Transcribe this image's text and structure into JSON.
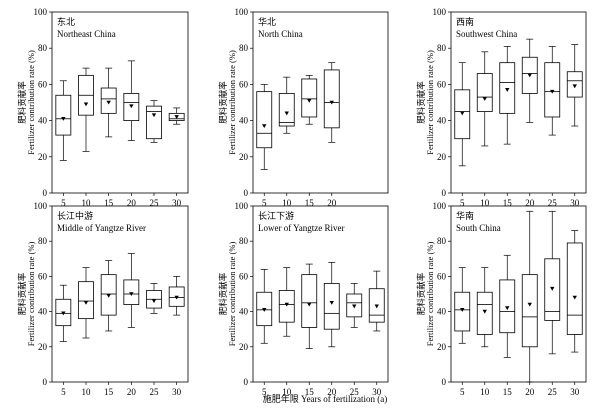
{
  "figure": {
    "xlabel": "施肥年限 Years of fertilization (a)",
    "ylabel_cn": "肥料贡献率",
    "ylabel_en": "Fertilizer contribution rate (%)",
    "yticks": [
      0,
      20,
      40,
      60,
      80,
      100
    ],
    "ylim": [
      0,
      100
    ]
  },
  "chart_data": [
    {
      "type": "box",
      "title_cn": "东北",
      "title_en": "Northeast China",
      "categories": [
        "5",
        "10",
        "15",
        "20",
        "25",
        "30"
      ],
      "boxes": [
        {
          "min": 18,
          "q1": 32,
          "median": 41,
          "q3": 54,
          "max": 62,
          "mean": 41
        },
        {
          "min": 23,
          "q1": 43,
          "median": 54,
          "q3": 65,
          "max": 69,
          "mean": 49
        },
        {
          "min": 31,
          "q1": 44,
          "median": 52,
          "q3": 58,
          "max": 69,
          "mean": 50
        },
        {
          "min": 29,
          "q1": 40,
          "median": 50,
          "q3": 55,
          "max": 73,
          "mean": 48
        },
        {
          "min": 28,
          "q1": 30,
          "median": 45,
          "q3": 48,
          "max": 51,
          "mean": 43
        },
        {
          "min": 38,
          "q1": 40,
          "median": 41,
          "q3": 44,
          "max": 47,
          "mean": 42
        }
      ]
    },
    {
      "type": "box",
      "title_cn": "华北",
      "title_en": "North China",
      "categories": [
        "5",
        "10",
        "15",
        "20"
      ],
      "boxes": [
        {
          "min": 13,
          "q1": 25,
          "median": 33,
          "q3": 56,
          "max": 60,
          "mean": 37
        },
        {
          "min": 33,
          "q1": 37,
          "median": 39,
          "q3": 55,
          "max": 64,
          "mean": 44
        },
        {
          "min": 38,
          "q1": 42,
          "median": 52,
          "q3": 63,
          "max": 65,
          "mean": 51
        },
        {
          "min": 28,
          "q1": 36,
          "median": 50,
          "q3": 68,
          "max": 72,
          "mean": 50
        }
      ]
    },
    {
      "type": "box",
      "title_cn": "西南",
      "title_en": "Southwest China",
      "categories": [
        "5",
        "10",
        "15",
        "20",
        "25",
        "30"
      ],
      "boxes": [
        {
          "min": 15,
          "q1": 30,
          "median": 45,
          "q3": 57,
          "max": 72,
          "mean": 44
        },
        {
          "min": 26,
          "q1": 45,
          "median": 53,
          "q3": 66,
          "max": 78,
          "mean": 52
        },
        {
          "min": 27,
          "q1": 44,
          "median": 61,
          "q3": 72,
          "max": 81,
          "mean": 57
        },
        {
          "min": 39,
          "q1": 55,
          "median": 66,
          "q3": 75,
          "max": 85,
          "mean": 65
        },
        {
          "min": 32,
          "q1": 42,
          "median": 56,
          "q3": 72,
          "max": 81,
          "mean": 56
        },
        {
          "min": 37,
          "q1": 53,
          "median": 62,
          "q3": 67,
          "max": 82,
          "mean": 59
        }
      ]
    },
    {
      "type": "box",
      "title_cn": "长江中游",
      "title_en": "Middle of Yangtze River",
      "categories": [
        "5",
        "10",
        "15",
        "20",
        "25",
        "30"
      ],
      "boxes": [
        {
          "min": 23,
          "q1": 32,
          "median": 39,
          "q3": 47,
          "max": 55,
          "mean": 39
        },
        {
          "min": 25,
          "q1": 36,
          "median": 46,
          "q3": 57,
          "max": 65,
          "mean": 45
        },
        {
          "min": 29,
          "q1": 38,
          "median": 50,
          "q3": 61,
          "max": 69,
          "mean": 49
        },
        {
          "min": 31,
          "q1": 44,
          "median": 50,
          "q3": 58,
          "max": 73,
          "mean": 50
        },
        {
          "min": 39,
          "q1": 42,
          "median": 47,
          "q3": 52,
          "max": 56,
          "mean": 46
        },
        {
          "min": 38,
          "q1": 43,
          "median": 48,
          "q3": 54,
          "max": 60,
          "mean": 48
        }
      ]
    },
    {
      "type": "box",
      "title_cn": "长江下游",
      "title_en": "Lower of Yangtze River",
      "categories": [
        "5",
        "10",
        "15",
        "20",
        "25",
        "30"
      ],
      "boxes": [
        {
          "min": 22,
          "q1": 32,
          "median": 41,
          "q3": 51,
          "max": 64,
          "mean": 41
        },
        {
          "min": 26,
          "q1": 34,
          "median": 44,
          "q3": 52,
          "max": 65,
          "mean": 44
        },
        {
          "min": 19,
          "q1": 31,
          "median": 45,
          "q3": 61,
          "max": 67,
          "mean": 44
        },
        {
          "min": 20,
          "q1": 30,
          "median": 39,
          "q3": 56,
          "max": 68,
          "mean": 45
        },
        {
          "min": 31,
          "q1": 37,
          "median": 45,
          "q3": 50,
          "max": 56,
          "mean": 43
        },
        {
          "min": 29,
          "q1": 34,
          "median": 38,
          "q3": 53,
          "max": 63,
          "mean": 43
        }
      ]
    },
    {
      "type": "box",
      "title_cn": "华南",
      "title_en": "South China",
      "categories": [
        "5",
        "10",
        "15",
        "20",
        "25",
        "30"
      ],
      "boxes": [
        {
          "min": 22,
          "q1": 29,
          "median": 41,
          "q3": 51,
          "max": 65,
          "mean": 41
        },
        {
          "min": 20,
          "q1": 27,
          "median": 44,
          "q3": 51,
          "max": 65,
          "mean": 40
        },
        {
          "min": 14,
          "q1": 28,
          "median": 40,
          "q3": 58,
          "max": 72,
          "mean": 42
        },
        {
          "min": 0,
          "q1": 20,
          "median": 37,
          "q3": 61,
          "max": 97,
          "mean": 44
        },
        {
          "min": 16,
          "q1": 35,
          "median": 40,
          "q3": 70,
          "max": 97,
          "mean": 53
        },
        {
          "min": 17,
          "q1": 27,
          "median": 38,
          "q3": 79,
          "max": 86,
          "mean": 48
        }
      ]
    }
  ]
}
